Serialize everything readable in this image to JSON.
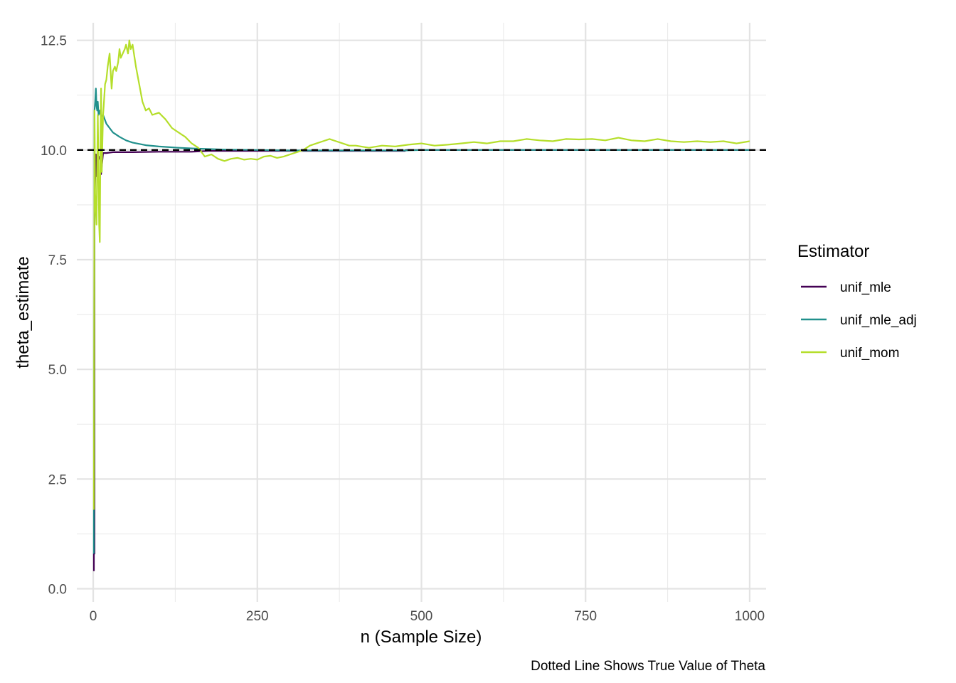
{
  "chart_data": {
    "type": "line",
    "xlabel": "n (Sample Size)",
    "ylabel": "theta_estimate",
    "caption": "Dotted Line Shows True Value of Theta",
    "xlim": [
      -25,
      1025
    ],
    "ylim": [
      -0.3,
      12.9
    ],
    "x_ticks": [
      0,
      250,
      500,
      750,
      1000
    ],
    "x_tick_labels": [
      "0",
      "250",
      "500",
      "750",
      "1000"
    ],
    "y_ticks": [
      0,
      2.5,
      5,
      7.5,
      10,
      12.5
    ],
    "y_tick_labels": [
      "0.0",
      "2.5",
      "5.0",
      "7.5",
      "10.0",
      "12.5"
    ],
    "grid": true,
    "reference_line": {
      "y": 10,
      "style": "dashed",
      "color": "#000000"
    },
    "legend": {
      "title": "Estimator",
      "placement": "right",
      "entries": [
        "unif_mle",
        "unif_mle_adj",
        "unif_mom"
      ]
    },
    "series": [
      {
        "name": "unif_mle",
        "color": "#440154",
        "x": [
          1,
          1,
          2,
          2,
          3,
          4,
          5,
          6,
          7,
          8,
          9,
          10,
          11,
          12,
          15,
          20,
          30,
          60,
          100,
          150,
          175,
          200,
          250,
          300,
          350,
          400,
          450,
          475,
          476,
          500,
          600,
          700,
          800,
          900,
          1000
        ],
        "y": [
          0.4,
          0.8,
          0.8,
          8.8,
          9.3,
          9.9,
          9.4,
          9.4,
          9.7,
          9.8,
          9.8,
          9.85,
          9.85,
          9.45,
          9.93,
          9.93,
          9.95,
          9.95,
          9.96,
          9.96,
          9.98,
          9.98,
          9.98,
          9.98,
          9.98,
          9.98,
          9.98,
          9.98,
          10.0,
          10.0,
          10.0,
          10.0,
          10.0,
          10.0,
          10.0
        ]
      },
      {
        "name": "unif_mle_adj",
        "color": "#21908C",
        "x": [
          1,
          2,
          3,
          4,
          5,
          6,
          7,
          8,
          10,
          12,
          15,
          20,
          25,
          30,
          40,
          50,
          60,
          80,
          100,
          130,
          160,
          200,
          250,
          300,
          350,
          400,
          450,
          475,
          500,
          600,
          700,
          800,
          900,
          1000
        ],
        "y": [
          0.8,
          10.9,
          11.1,
          11.4,
          11.0,
          10.9,
          11.1,
          10.8,
          10.9,
          10.75,
          10.8,
          10.6,
          10.5,
          10.4,
          10.3,
          10.22,
          10.17,
          10.11,
          10.08,
          10.05,
          10.03,
          10.01,
          10.0,
          9.99,
          9.99,
          9.99,
          9.99,
          9.99,
          10.0,
          10.0,
          10.0,
          10.0,
          10.0,
          10.0
        ]
      },
      {
        "name": "unif_mom",
        "color": "#B5DE2B",
        "x": [
          1,
          2,
          3,
          5,
          7,
          9,
          10,
          11,
          12,
          13,
          14,
          15,
          16,
          18,
          20,
          22,
          25,
          28,
          30,
          33,
          35,
          38,
          40,
          42,
          45,
          48,
          50,
          53,
          55,
          57,
          60,
          63,
          65,
          70,
          75,
          80,
          85,
          90,
          100,
          110,
          120,
          130,
          140,
          150,
          160,
          170,
          180,
          190,
          200,
          210,
          220,
          230,
          240,
          250,
          260,
          270,
          280,
          290,
          300,
          310,
          320,
          330,
          340,
          350,
          360,
          370,
          380,
          390,
          400,
          420,
          440,
          460,
          480,
          500,
          520,
          540,
          560,
          580,
          600,
          620,
          640,
          660,
          680,
          700,
          720,
          740,
          760,
          780,
          800,
          820,
          840,
          860,
          880,
          900,
          920,
          940,
          960,
          980,
          1000
        ],
        "y": [
          1.8,
          10.9,
          9.0,
          8.3,
          10.8,
          8.3,
          7.9,
          10.1,
          11.4,
          9.5,
          10.2,
          10.8,
          11.0,
          11.5,
          11.6,
          11.9,
          12.2,
          11.4,
          11.8,
          11.9,
          11.8,
          12.0,
          12.3,
          12.1,
          12.2,
          12.3,
          12.4,
          12.2,
          12.5,
          12.3,
          12.4,
          12.1,
          11.9,
          11.5,
          11.1,
          10.9,
          10.95,
          10.8,
          10.85,
          10.7,
          10.5,
          10.4,
          10.3,
          10.15,
          10.05,
          9.85,
          9.9,
          9.8,
          9.75,
          9.8,
          9.82,
          9.78,
          9.8,
          9.78,
          9.85,
          9.87,
          9.82,
          9.85,
          9.9,
          9.95,
          10.0,
          10.1,
          10.15,
          10.2,
          10.25,
          10.2,
          10.15,
          10.1,
          10.1,
          10.05,
          10.1,
          10.08,
          10.12,
          10.15,
          10.1,
          10.12,
          10.15,
          10.18,
          10.15,
          10.2,
          10.2,
          10.25,
          10.22,
          10.2,
          10.25,
          10.24,
          10.25,
          10.22,
          10.28,
          10.22,
          10.2,
          10.25,
          10.2,
          10.18,
          10.2,
          10.18,
          10.2,
          10.15,
          10.2
        ]
      }
    ]
  }
}
